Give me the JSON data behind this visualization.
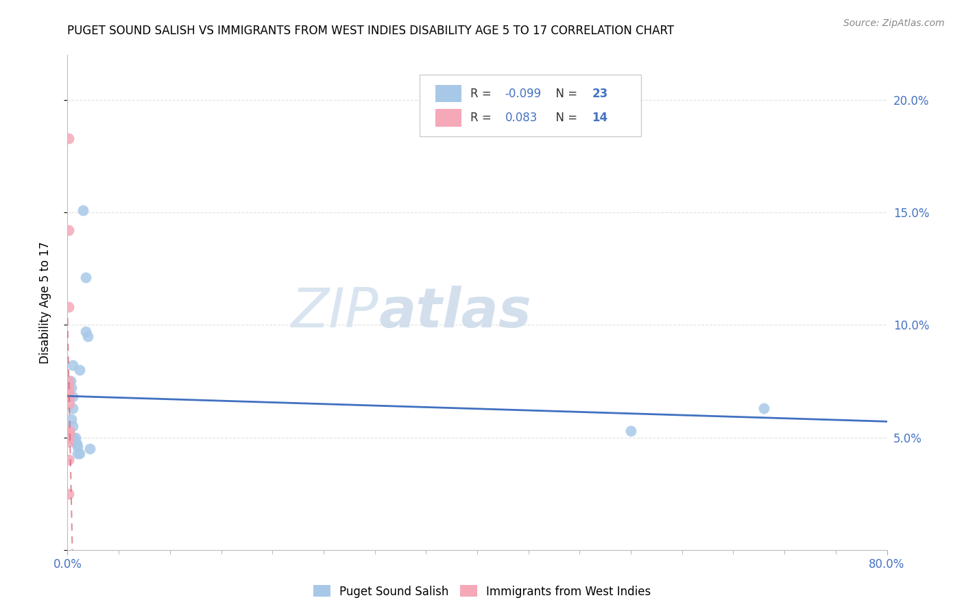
{
  "title": "PUGET SOUND SALISH VS IMMIGRANTS FROM WEST INDIES DISABILITY AGE 5 TO 17 CORRELATION CHART",
  "source": "Source: ZipAtlas.com",
  "ylabel": "Disability Age 5 to 17",
  "xlim": [
    0.0,
    0.8
  ],
  "ylim": [
    0.0,
    0.22
  ],
  "yticks_right": [
    0.05,
    0.1,
    0.15,
    0.2
  ],
  "ytick_labels_right": [
    "5.0%",
    "10.0%",
    "15.0%",
    "20.0%"
  ],
  "blue_R": -0.099,
  "blue_N": 23,
  "pink_R": 0.083,
  "pink_N": 14,
  "blue_color": "#A8C8E8",
  "pink_color": "#F4A8B8",
  "trend_blue_color": "#4070C0",
  "trend_pink_color": "#D06070",
  "watermark_color": "#D8E4F0",
  "axis_label_color": "#4472C4",
  "text_color": "#333333",
  "grid_color": "#DDDDDD",
  "blue_label": "Puget Sound Salish",
  "pink_label": "Immigrants from West Indies",
  "blue_x": [
    0.003,
    0.004,
    0.004,
    0.005,
    0.005,
    0.005,
    0.005,
    0.006,
    0.007,
    0.008,
    0.008,
    0.009,
    0.01,
    0.01,
    0.012,
    0.012,
    0.015,
    0.018,
    0.018,
    0.02,
    0.022,
    0.55,
    0.68
  ],
  "blue_y": [
    0.075,
    0.072,
    0.058,
    0.082,
    0.068,
    0.063,
    0.055,
    0.05,
    0.048,
    0.05,
    0.048,
    0.047,
    0.046,
    0.043,
    0.043,
    0.08,
    0.151,
    0.121,
    0.097,
    0.095,
    0.045,
    0.053,
    0.063
  ],
  "pink_x": [
    0.001,
    0.001,
    0.001,
    0.001,
    0.001,
    0.001,
    0.002,
    0.002,
    0.002,
    0.002,
    0.001,
    0.001,
    0.001,
    0.001
  ],
  "pink_y": [
    0.183,
    0.142,
    0.108,
    0.075,
    0.072,
    0.07,
    0.068,
    0.065,
    0.053,
    0.052,
    0.05,
    0.048,
    0.04,
    0.025
  ]
}
